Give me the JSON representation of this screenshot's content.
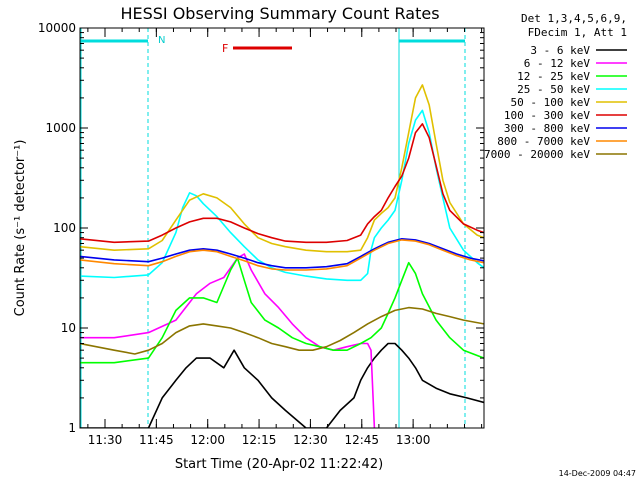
{
  "chart_data": {
    "type": "line",
    "title": "HESSI Observing Summary Count Rates",
    "xlabel": "Start Time (20-Apr-02 11:22:42)",
    "ylabel": "Count Rate (s⁻¹ detector⁻¹)",
    "yscale": "log",
    "ylim": [
      1,
      10000
    ],
    "xlim_minutes_after_start": [
      0,
      118
    ],
    "y_ticks": [
      "1",
      "10",
      "100",
      "1000",
      "10000"
    ],
    "x_ticks": [
      {
        "label": "11:30",
        "t": 7.3
      },
      {
        "label": "11:45",
        "t": 22.3
      },
      {
        "label": "12:00",
        "t": 37.3
      },
      {
        "label": "12:15",
        "t": 52.3
      },
      {
        "label": "12:30",
        "t": 67.3
      },
      {
        "label": "12:45",
        "t": 82.3
      },
      {
        "label": "13:00",
        "t": 97.3
      }
    ],
    "legend_header": [
      "Det 1,3,4,5,6,9,",
      "FDecim 1, Att 1"
    ],
    "legend_position": "right",
    "annotations": {
      "night_label": "N",
      "flare_label": "F",
      "footer_date": "14-Dec-2009 04:47"
    },
    "series": [
      {
        "name": "3 - 6 keV",
        "color": "#000000",
        "x": [
          0,
          20,
          24,
          28,
          31,
          34,
          38,
          42,
          45,
          48,
          52,
          56,
          60,
          66,
          72,
          76,
          80,
          82,
          84,
          86,
          88,
          90,
          92,
          94,
          96,
          98,
          100,
          104,
          108,
          113,
          118
        ],
        "y": [
          1,
          1,
          2,
          3,
          4,
          5,
          5,
          4,
          6,
          4,
          3,
          2,
          1.5,
          1,
          1,
          1.5,
          2,
          3,
          4,
          5,
          6,
          7,
          7,
          6,
          5,
          4,
          3,
          2.5,
          2.2,
          2,
          1.8
        ]
      },
      {
        "name": "6 - 12 keV",
        "color": "#ff00ff",
        "x": [
          0,
          10,
          20,
          28,
          34,
          38,
          42,
          44,
          46,
          48,
          50,
          54,
          58,
          62,
          66,
          70,
          74,
          78,
          82,
          84,
          85,
          86
        ],
        "y": [
          8,
          8,
          9,
          12,
          22,
          28,
          32,
          40,
          50,
          55,
          38,
          22,
          16,
          11,
          8,
          6.5,
          6,
          6.5,
          7,
          7,
          6,
          1
        ]
      },
      {
        "name": "12 - 25 keV",
        "color": "#00ff00",
        "x": [
          0,
          10,
          20,
          24,
          28,
          32,
          36,
          40,
          44,
          46,
          48,
          50,
          54,
          58,
          62,
          66,
          70,
          74,
          78,
          82,
          85,
          88,
          90,
          92,
          94,
          96,
          98,
          100,
          104,
          108,
          112,
          118
        ],
        "y": [
          4.5,
          4.5,
          5,
          8,
          15,
          20,
          20,
          18,
          38,
          50,
          30,
          18,
          12,
          10,
          8,
          7,
          6.5,
          6,
          6,
          7,
          8,
          10,
          14,
          20,
          30,
          45,
          35,
          22,
          12,
          8,
          6,
          5
        ]
      },
      {
        "name": "25 - 50 keV",
        "color": "#00ffff",
        "x": [
          0,
          10,
          20,
          24,
          28,
          30,
          32,
          34,
          36,
          40,
          44,
          48,
          52,
          56,
          60,
          66,
          72,
          78,
          82,
          84,
          85,
          86,
          88,
          90,
          92,
          94,
          96,
          98,
          100,
          102,
          104,
          106,
          108,
          112,
          116,
          118
        ],
        "y": [
          33,
          32,
          34,
          45,
          90,
          160,
          225,
          210,
          175,
          130,
          90,
          65,
          48,
          40,
          36,
          33,
          31,
          30,
          30,
          35,
          60,
          80,
          100,
          120,
          150,
          300,
          700,
          1200,
          1500,
          900,
          400,
          200,
          100,
          60,
          45,
          40
        ]
      },
      {
        "name": "50 - 100 keV",
        "color": "#e0c000",
        "x": [
          0,
          10,
          20,
          24,
          28,
          32,
          36,
          40,
          44,
          48,
          52,
          56,
          60,
          66,
          72,
          78,
          82,
          84,
          86,
          88,
          90,
          92,
          94,
          96,
          98,
          100,
          102,
          104,
          106,
          108,
          112,
          116,
          118
        ],
        "y": [
          65,
          60,
          62,
          75,
          120,
          190,
          220,
          200,
          160,
          110,
          80,
          70,
          65,
          60,
          58,
          58,
          60,
          80,
          120,
          140,
          160,
          200,
          400,
          900,
          2000,
          2700,
          1700,
          700,
          300,
          180,
          110,
          85,
          80
        ]
      },
      {
        "name": "100 - 300 keV",
        "color": "#dd0000",
        "x": [
          0,
          10,
          20,
          24,
          28,
          32,
          36,
          40,
          44,
          48,
          52,
          56,
          60,
          66,
          72,
          78,
          82,
          84,
          86,
          88,
          90,
          92,
          94,
          96,
          98,
          100,
          102,
          104,
          106,
          108,
          112,
          116,
          118
        ],
        "y": [
          78,
          72,
          74,
          85,
          100,
          115,
          125,
          125,
          115,
          100,
          88,
          80,
          74,
          72,
          72,
          75,
          85,
          110,
          130,
          150,
          200,
          260,
          330,
          500,
          900,
          1100,
          800,
          420,
          220,
          150,
          110,
          95,
          90
        ]
      },
      {
        "name": "300 - 800 keV",
        "color": "#0000ee",
        "x": [
          0,
          10,
          20,
          24,
          28,
          32,
          36,
          40,
          44,
          48,
          52,
          56,
          60,
          66,
          72,
          78,
          82,
          86,
          90,
          94,
          98,
          102,
          106,
          110,
          114,
          118
        ],
        "y": [
          52,
          48,
          46,
          50,
          55,
          60,
          62,
          60,
          55,
          50,
          45,
          42,
          40,
          40,
          41,
          44,
          52,
          62,
          72,
          78,
          76,
          70,
          62,
          55,
          50,
          47
        ]
      },
      {
        "name": "800 - 7000 keV",
        "color": "#ff8800",
        "x": [
          0,
          10,
          20,
          24,
          28,
          32,
          36,
          40,
          44,
          48,
          52,
          56,
          60,
          66,
          72,
          78,
          82,
          86,
          90,
          94,
          98,
          102,
          106,
          110,
          114,
          118
        ],
        "y": [
          48,
          44,
          42,
          46,
          52,
          58,
          60,
          58,
          52,
          47,
          42,
          39,
          38,
          38,
          39,
          42,
          50,
          60,
          70,
          76,
          74,
          68,
          60,
          53,
          48,
          45
        ]
      },
      {
        "name": "7000 - 20000 keV",
        "color": "#8b7500",
        "x": [
          0,
          10,
          16,
          20,
          24,
          28,
          32,
          36,
          40,
          44,
          48,
          52,
          56,
          60,
          64,
          68,
          72,
          76,
          80,
          84,
          88,
          92,
          96,
          100,
          104,
          108,
          112,
          118
        ],
        "y": [
          7,
          6,
          5.5,
          6,
          7,
          9,
          10.5,
          11,
          10.5,
          10,
          9,
          8,
          7,
          6.5,
          6,
          6,
          6.5,
          7.5,
          9,
          11,
          13,
          15,
          16,
          15.5,
          14,
          13,
          12,
          11
        ]
      }
    ]
  }
}
